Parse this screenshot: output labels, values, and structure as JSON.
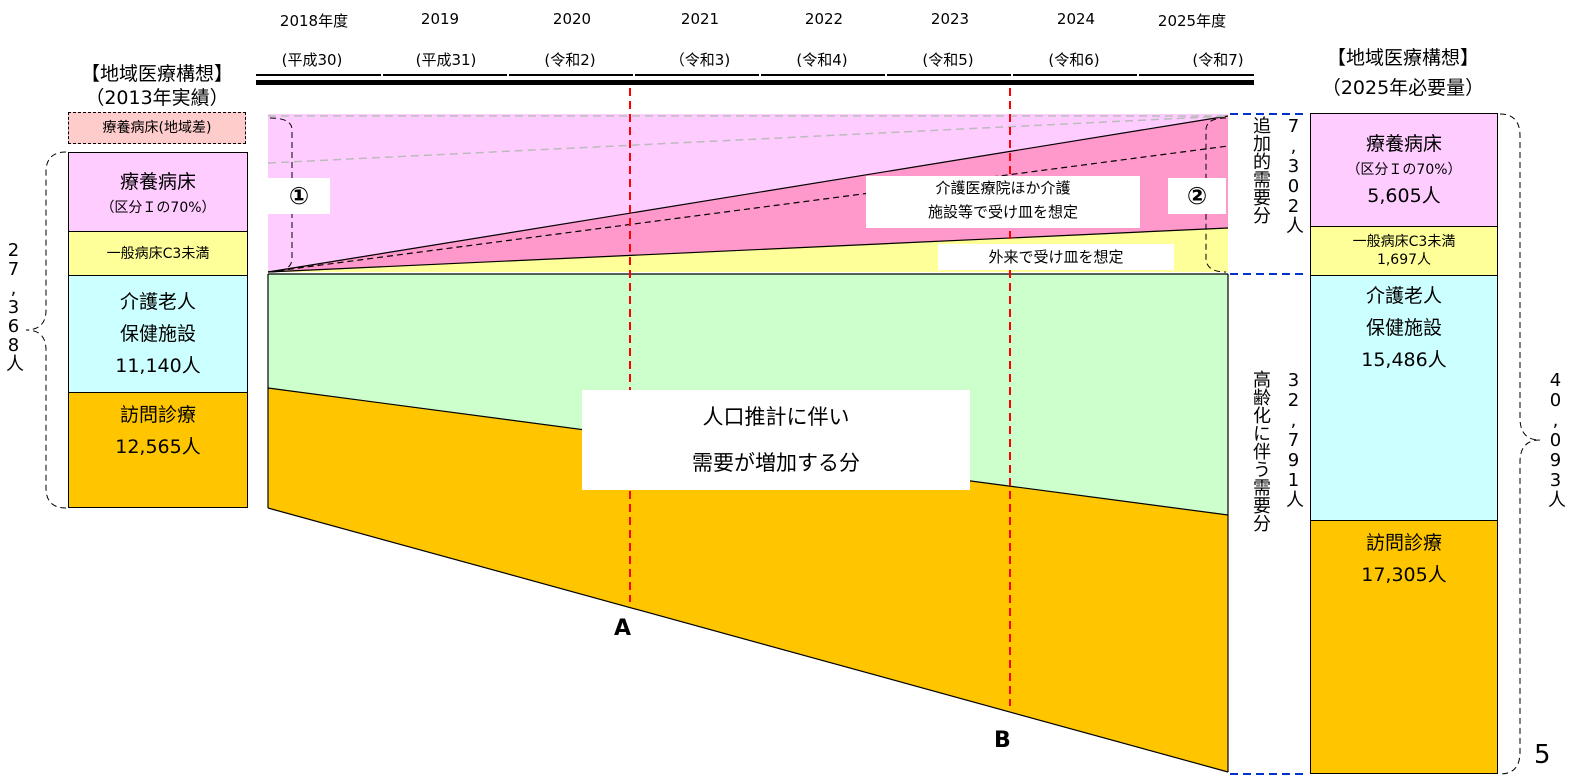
{
  "timeline": {
    "years": [
      "2018年度",
      "2019",
      "2020",
      "2021",
      "2022",
      "2023",
      "2024",
      "2025年度"
    ],
    "eras": [
      "(平成30)",
      "(平成31)",
      "(令和2)",
      "（令和3)",
      "(令和4)",
      "(令和5)",
      "(令和6)",
      "(令和7)"
    ]
  },
  "left": {
    "header_line1": "【地域医療構想】",
    "header_line2": "（2013年実績）",
    "regional_gap_label": "療養病床(地域差)",
    "ltc_label": "療養病床",
    "ltc_sub": "（区分Ｉの70%）",
    "general_label": "一般病床C3未満",
    "roken_line1": "介護老人",
    "roken_line2": "保健施設",
    "roken_value": "11,140人",
    "visit_label": "訪問診療",
    "visit_value": "12,565人",
    "total": "27,368人"
  },
  "right": {
    "header_line1": "【地域医療構想】",
    "header_line2": "（2025年必要量）",
    "ltc_label": "療養病床",
    "ltc_sub": "（区分Ｉの70%）",
    "ltc_value": "5,605人",
    "general_label": "一般病床C3未満",
    "general_value": "1,697人",
    "roken_line1": "介護老人",
    "roken_line2": "保健施設",
    "roken_value": "15,486人",
    "visit_label": "訪問診療",
    "visit_value": "17,305人",
    "total": "40,093人"
  },
  "middle": {
    "marker1": "①",
    "marker2": "②",
    "kaigo_line1": "介護医療院ほか介護",
    "kaigo_line2": "施設等で受け皿を想定",
    "outpatient": "外来で受け皿を想定",
    "pop_line1": "人口推計に伴い",
    "pop_line2": "需要が増加する分",
    "line_a": "A",
    "line_b": "B"
  },
  "side_labels": {
    "additional_text": "追加的需要分",
    "additional_value": "7,302人",
    "aging_text": "高齢化に伴う需要分",
    "aging_value": "32,791人"
  },
  "page_number": "5",
  "colors": {
    "pink": "#ffccff",
    "yellow": "#ffff99",
    "magenta": "#ff99cc",
    "green": "#ccffcc",
    "cyan": "#ccffff",
    "orange": "#ffc600",
    "red_dash": "#ff0000",
    "blue_dash": "#0033cc"
  }
}
